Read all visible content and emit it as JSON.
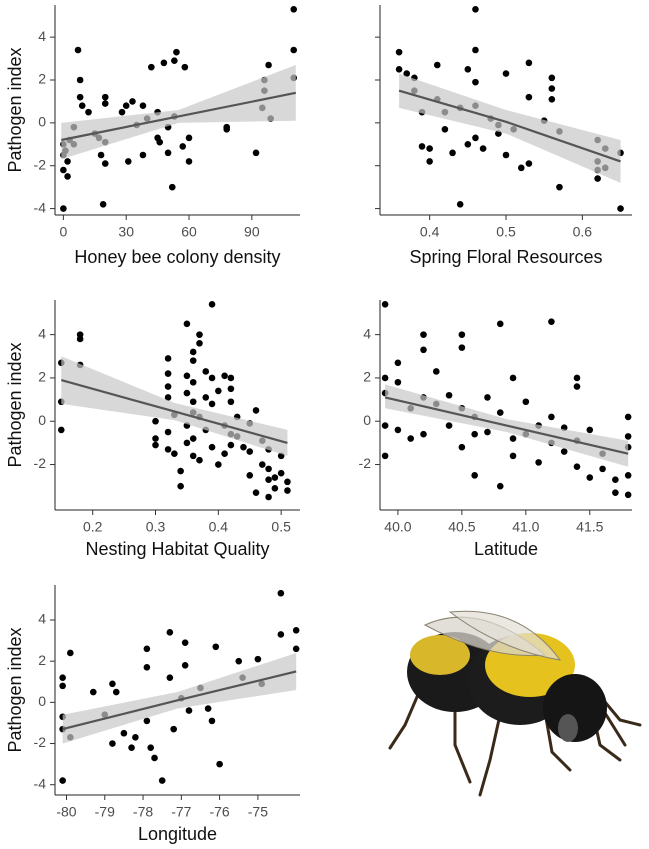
{
  "chart_data": [
    {
      "type": "scatter",
      "x_label": "Honey bee colony density",
      "y_label": "Pathogen index",
      "x": [
        0,
        0,
        0,
        2,
        2,
        3,
        5,
        5,
        7,
        8,
        8,
        9,
        12,
        15,
        17,
        18,
        19,
        20,
        20,
        20,
        20,
        28,
        30,
        31,
        33,
        35,
        38,
        38,
        40,
        42,
        45,
        45,
        46,
        48,
        50,
        50,
        52,
        53,
        53,
        54,
        57,
        58,
        60,
        60,
        78,
        78,
        92,
        95,
        96,
        96,
        98,
        99,
        110,
        110,
        110,
        0,
        1
      ],
      "y": [
        -1,
        -1.5,
        -2.2,
        -2.5,
        -1.8,
        -0.8,
        -1,
        -0.2,
        3.4,
        2,
        1.2,
        0.8,
        0.5,
        -0.5,
        -0.7,
        -1.5,
        -3.8,
        -0.9,
        -1.9,
        0.9,
        1.2,
        0.5,
        0.8,
        -1.8,
        1,
        -0.1,
        0.8,
        -1.5,
        0.2,
        2.6,
        0.5,
        -0.7,
        -0.9,
        2.8,
        -0.2,
        -1.4,
        -3,
        0.3,
        2.9,
        3.3,
        -1.1,
        2.6,
        -1.8,
        -0.7,
        -0.2,
        -0.3,
        -1.4,
        0.7,
        2,
        1.5,
        2.7,
        0.2,
        5.3,
        3.4,
        2.1,
        -4,
        -1.3
      ],
      "xlim": [
        -4,
        113
      ],
      "ylim": [
        -4.3,
        5.5
      ],
      "xticks": [
        0,
        30,
        60,
        90
      ],
      "yticks": [
        -4,
        -2,
        0,
        2,
        4
      ],
      "ytick_labels": true,
      "fit": {
        "x": [
          -1,
          55,
          111
        ],
        "y": [
          -0.8,
          0.3,
          1.4
        ],
        "lower": [
          -1.7,
          0.0,
          0.1
        ],
        "upper": [
          0.0,
          0.6,
          2.7
        ]
      },
      "color": "#000000",
      "line_color": "#555555",
      "band_color": "#c8c8c8"
    },
    {
      "type": "scatter",
      "x_label": "Spring Floral Resources",
      "x": [
        0.36,
        0.36,
        0.37,
        0.38,
        0.38,
        0.39,
        0.39,
        0.4,
        0.4,
        0.41,
        0.41,
        0.42,
        0.42,
        0.43,
        0.44,
        0.44,
        0.45,
        0.45,
        0.46,
        0.46,
        0.46,
        0.46,
        0.46,
        0.47,
        0.48,
        0.49,
        0.49,
        0.5,
        0.5,
        0.51,
        0.52,
        0.53,
        0.53,
        0.53,
        0.55,
        0.56,
        0.56,
        0.56,
        0.57,
        0.57,
        0.62,
        0.62,
        0.62,
        0.62,
        0.63,
        0.63,
        0.65,
        0.65
      ],
      "y": [
        3.3,
        2.5,
        2.3,
        2.1,
        1.5,
        0.5,
        -1.1,
        -1.8,
        -1.2,
        2.7,
        1.1,
        0.5,
        -0.3,
        -1.4,
        -3.8,
        0.7,
        2.5,
        -1,
        5.3,
        3.4,
        1.9,
        0.8,
        -0.7,
        -1.2,
        0.2,
        -0.1,
        -0.5,
        -1.5,
        2.3,
        -0.3,
        -2.1,
        2.8,
        1.2,
        -1.9,
        0.1,
        1.1,
        2.1,
        1.6,
        -3,
        -0.4,
        -0.8,
        -1.8,
        -2.2,
        -2.6,
        -1.2,
        -2.1,
        -1.4,
        -4
      ],
      "xlim": [
        0.335,
        0.665
      ],
      "ylim": [
        -4.3,
        5.5
      ],
      "xticks": [
        0.4,
        0.5,
        0.6
      ],
      "yticks": [
        -4,
        -2,
        0,
        2,
        4
      ],
      "ytick_labels": false,
      "fit": {
        "x": [
          0.36,
          0.5,
          0.65
        ],
        "y": [
          1.5,
          0.05,
          -1.8
        ],
        "lower": [
          0.7,
          -0.5,
          -2.8
        ],
        "upper": [
          2.3,
          0.6,
          -0.8
        ]
      },
      "color": "#000000",
      "line_color": "#555555",
      "band_color": "#c8c8c8"
    },
    {
      "type": "scatter",
      "x_label": "Nesting Habitat Quality",
      "y_label": "Pathogen index",
      "x": [
        0.15,
        0.15,
        0.15,
        0.18,
        0.18,
        0.18,
        0.3,
        0.3,
        0.3,
        0.32,
        0.32,
        0.32,
        0.32,
        0.32,
        0.32,
        0.33,
        0.33,
        0.34,
        0.34,
        0.35,
        0.35,
        0.35,
        0.35,
        0.35,
        0.36,
        0.36,
        0.36,
        0.36,
        0.36,
        0.36,
        0.36,
        0.37,
        0.37,
        0.37,
        0.37,
        0.38,
        0.38,
        0.38,
        0.39,
        0.39,
        0.39,
        0.39,
        0.4,
        0.4,
        0.41,
        0.41,
        0.41,
        0.42,
        0.42,
        0.42,
        0.42,
        0.42,
        0.43,
        0.43,
        0.44,
        0.45,
        0.45,
        0.45,
        0.46,
        0.46,
        0.47,
        0.47,
        0.48,
        0.48,
        0.48,
        0.48,
        0.49,
        0.49,
        0.5,
        0.5,
        0.51,
        0.51
      ],
      "y": [
        2.7,
        0.9,
        -0.4,
        4,
        3.8,
        2.6,
        -0.8,
        -1.1,
        0,
        2.9,
        2.2,
        1.6,
        1.1,
        -0.5,
        -1.3,
        0.3,
        -1.5,
        -2.3,
        -3,
        4.5,
        2.1,
        1.3,
        -0.2,
        -1,
        0.9,
        -1.6,
        3.2,
        2.8,
        1.8,
        0.4,
        -0.8,
        4,
        3.6,
        0.2,
        -1.8,
        2.3,
        1.1,
        -0.4,
        5.4,
        2,
        0.8,
        -1.2,
        -2,
        1.4,
        2.1,
        -0.2,
        -1.5,
        2,
        0.9,
        -0.6,
        1.5,
        -1.1,
        0.2,
        -0.7,
        -1.2,
        -0.1,
        -1.4,
        -2.5,
        0.5,
        -3.3,
        -0.9,
        -2,
        -2.7,
        -3.5,
        -2.2,
        -1.3,
        -2.6,
        -3.1,
        -2.4,
        -1.6,
        -2.8,
        -3.2
      ],
      "xlim": [
        0.14,
        0.53
      ],
      "ylim": [
        -4.1,
        5.6
      ],
      "xticks": [
        0.2,
        0.3,
        0.4,
        0.5
      ],
      "yticks": [
        -2,
        0,
        2,
        4
      ],
      "ytick_labels": true,
      "fit": {
        "x": [
          0.15,
          0.33,
          0.51
        ],
        "y": [
          1.9,
          0.45,
          -1.0
        ],
        "lower": [
          0.8,
          0.05,
          -1.6
        ],
        "upper": [
          3.0,
          0.85,
          -0.4
        ]
      },
      "color": "#000000",
      "line_color": "#555555",
      "band_color": "#c8c8c8"
    },
    {
      "type": "scatter",
      "x_label": "Latitude",
      "x": [
        39.9,
        39.9,
        39.9,
        39.9,
        39.9,
        40,
        40,
        40,
        40.1,
        40.1,
        40.2,
        40.2,
        40.2,
        40.2,
        40.3,
        40.3,
        40.4,
        40.4,
        40.5,
        40.5,
        40.5,
        40.5,
        40.6,
        40.6,
        40.6,
        40.7,
        40.7,
        40.8,
        40.8,
        40.8,
        40.9,
        40.9,
        40.9,
        41,
        41,
        41.1,
        41.1,
        41.2,
        41.2,
        41.2,
        41.3,
        41.3,
        41.4,
        41.4,
        41.4,
        41.4,
        41.5,
        41.5,
        41.6,
        41.6,
        41.7,
        41.7,
        41.8,
        41.8,
        41.8,
        41.8,
        41.8
      ],
      "y": [
        5.4,
        2,
        1.3,
        -0.2,
        -1.6,
        2.7,
        1.8,
        -0.4,
        0.6,
        -0.8,
        4,
        3.3,
        1.1,
        -0.6,
        0.8,
        2.3,
        1.2,
        -0.2,
        4,
        3.4,
        0.6,
        -1.2,
        0.2,
        -0.6,
        -2.5,
        1.1,
        -0.5,
        4.5,
        0.4,
        -3,
        2,
        -0.8,
        -1.6,
        0.9,
        -0.6,
        -0.2,
        -1.9,
        4.6,
        0.2,
        -1,
        -0.3,
        -1.4,
        2,
        1.6,
        -0.9,
        -2.1,
        -0.4,
        -2.6,
        -1.5,
        -2.2,
        -3.3,
        -2.7,
        0.2,
        -0.7,
        -2.5,
        -3.4,
        -1.2
      ],
      "xlim": [
        39.86,
        41.83
      ],
      "ylim": [
        -4.1,
        5.6
      ],
      "xticks": [
        {
          "value": 40,
          "label": "40.0"
        },
        40.5,
        {
          "value": 41,
          "label": "41.0"
        },
        41.5
      ],
      "yticks": [
        -2,
        0,
        2,
        4
      ],
      "ytick_labels": true,
      "fit": {
        "x": [
          39.9,
          40.85,
          41.8
        ],
        "y": [
          1.1,
          -0.2,
          -1.5
        ],
        "lower": [
          0.6,
          -0.5,
          -2.1
        ],
        "upper": [
          1.7,
          0.1,
          -0.9
        ]
      },
      "color": "#000000",
      "line_color": "#555555",
      "band_color": "#c8c8c8"
    },
    {
      "type": "scatter",
      "x_label": "Longitude",
      "y_label": "Pathogen index",
      "x": [
        -80.1,
        -80.1,
        -80.1,
        -80.1,
        -80.1,
        -79.9,
        -79.9,
        -79.3,
        -79,
        -78.8,
        -78.8,
        -78.7,
        -78.5,
        -78.3,
        -78.2,
        -77.9,
        -77.9,
        -77.9,
        -77.8,
        -77.7,
        -77.5,
        -77.3,
        -77.3,
        -77.2,
        -77,
        -76.9,
        -76.9,
        -76.8,
        -76.5,
        -76.3,
        -76.2,
        -76.1,
        -76,
        -75.5,
        -75.4,
        -75,
        -74.9,
        -74.4,
        -74.4,
        -74,
        -74
      ],
      "y": [
        1.2,
        0.8,
        -0.7,
        -1.3,
        -3.8,
        2.4,
        -1.7,
        0.5,
        -0.6,
        0.9,
        -2,
        0.5,
        -1.5,
        -2.2,
        -1.7,
        2.6,
        1.7,
        -0.9,
        -2.2,
        -2.7,
        -3.8,
        3.4,
        1.2,
        -1.3,
        0.2,
        2.9,
        1.8,
        -0.4,
        0.7,
        -0.3,
        -0.9,
        2.7,
        -3,
        2,
        1.2,
        2.1,
        0.9,
        3.3,
        5.3,
        3.5,
        2.6
      ],
      "xlim": [
        -80.3,
        -73.9
      ],
      "ylim": [
        -4.5,
        5.7
      ],
      "xticks": [
        -80,
        -79,
        -78,
        -77,
        -76,
        -75
      ],
      "yticks": [
        -4,
        -2,
        0,
        2,
        4
      ],
      "ytick_labels": true,
      "fit": {
        "x": [
          -80.1,
          -77.1,
          -74
        ],
        "y": [
          -1.3,
          0.1,
          1.5
        ],
        "lower": [
          -2.0,
          -0.3,
          0.6
        ],
        "upper": [
          -0.6,
          0.5,
          2.4
        ]
      },
      "color": "#000000",
      "line_color": "#555555",
      "band_color": "#c8c8c8"
    }
  ]
}
